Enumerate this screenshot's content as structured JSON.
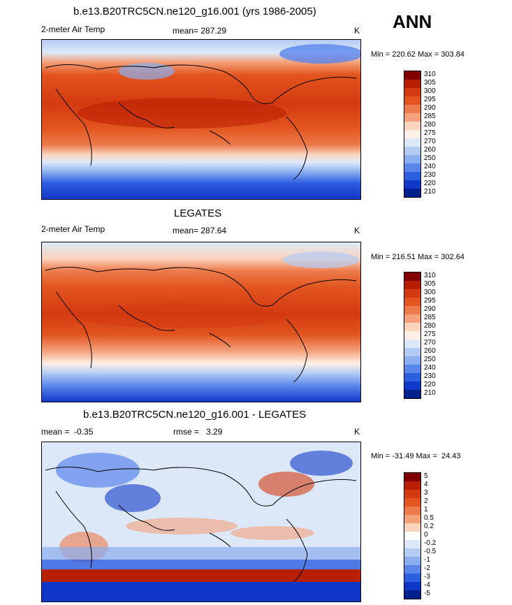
{
  "season": "ANN",
  "panels": [
    {
      "title": "b.e13.B20TRC5CN.ne120_g16.001 (yrs 1986-2005)",
      "left_label": "2-meter Air Temp",
      "center_label": "mean= 287.29",
      "right_label": "K",
      "minmax": "Min = 220.62 Max = 303.84",
      "colorbar": [
        "310",
        "305",
        "300",
        "295",
        "290",
        "285",
        "280",
        "275",
        "270",
        "260",
        "250",
        "240",
        "230",
        "220",
        "210"
      ],
      "colors": [
        "#800000",
        "#b81e00",
        "#d43a10",
        "#e2551f",
        "#ec7a4a",
        "#f4a07a",
        "#fbd4be",
        "#fdf0e6",
        "#dce8f8",
        "#b4ccf4",
        "#8aaef0",
        "#5a86ec",
        "#2c5ee0",
        "#1038c8",
        "#00208c"
      ]
    },
    {
      "title": "LEGATES",
      "left_label": "2-meter Air Temp",
      "center_label": "mean= 287.64",
      "right_label": "K",
      "minmax": "Min = 216.51 Max = 302.64",
      "colorbar": [
        "310",
        "305",
        "300",
        "295",
        "290",
        "285",
        "280",
        "275",
        "270",
        "260",
        "250",
        "240",
        "230",
        "220",
        "210"
      ],
      "colors": [
        "#800000",
        "#b81e00",
        "#d43a10",
        "#e2551f",
        "#ec7a4a",
        "#f4a07a",
        "#fbd4be",
        "#fdf0e6",
        "#dce8f8",
        "#b4ccf4",
        "#8aaef0",
        "#5a86ec",
        "#2c5ee0",
        "#1038c8",
        "#00208c"
      ]
    },
    {
      "title": "b.e13.B20TRC5CN.ne120_g16.001 - LEGATES",
      "left_label": "mean =  -0.35",
      "center_label": "rmse =   3.29",
      "right_label": "K",
      "minmax": "Min = -31.49 Max =  24.43",
      "colorbar": [
        "5",
        "4",
        "3",
        "2",
        "1",
        "0.5",
        "0.2",
        "0",
        "-0.2",
        "-0.5",
        "-1",
        "-2",
        "-3",
        "-4",
        "-5"
      ],
      "colors": [
        "#800000",
        "#b81e00",
        "#d43a10",
        "#e2551f",
        "#ec7a4a",
        "#f4a07a",
        "#fbd4be",
        "#ffffff",
        "#dce8f8",
        "#b4ccf4",
        "#8aaef0",
        "#5a86ec",
        "#2c5ee0",
        "#1038c8",
        "#00208c"
      ]
    }
  ]
}
